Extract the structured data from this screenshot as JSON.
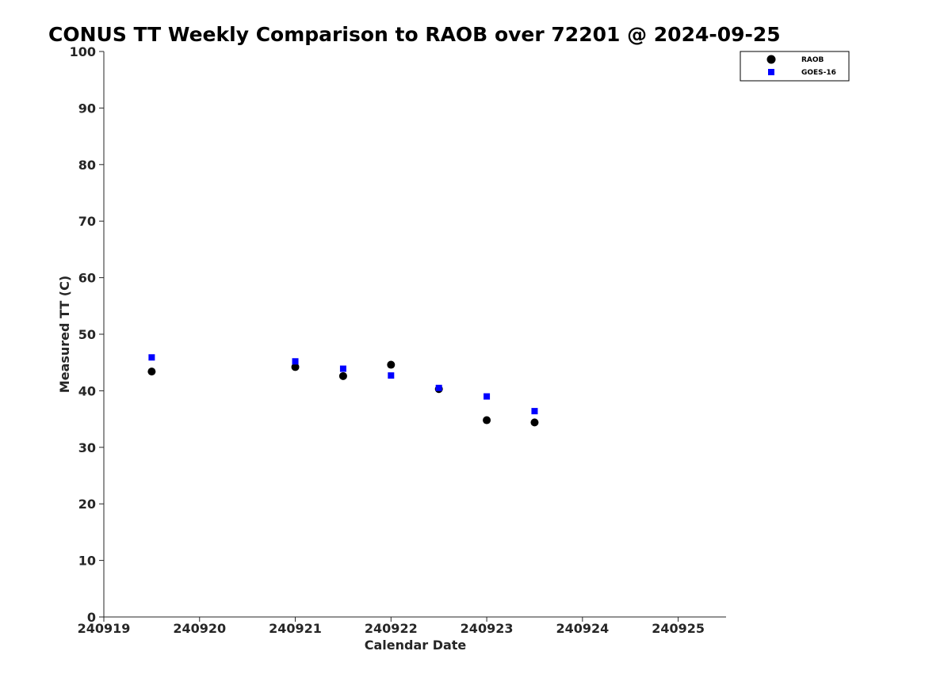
{
  "chart_data": {
    "type": "scatter",
    "title": "CONUS TT Weekly Comparison to RAOB over 72201 @ 2024-09-25",
    "xlabel": "Calendar Date",
    "ylabel": "Measured TT (C)",
    "xlim": [
      240919,
      240925.5
    ],
    "ylim": [
      0,
      100
    ],
    "x_ticks": [
      240919,
      240920,
      240921,
      240922,
      240923,
      240924,
      240925
    ],
    "x_tick_labels": [
      "240919",
      "240920",
      "240921",
      "240922",
      "240923",
      "240924",
      "240925"
    ],
    "y_ticks": [
      0,
      10,
      20,
      30,
      40,
      50,
      60,
      70,
      80,
      90,
      100
    ],
    "y_tick_labels": [
      "0",
      "10",
      "20",
      "30",
      "40",
      "50",
      "60",
      "70",
      "80",
      "90",
      "100"
    ],
    "grid": false,
    "legend_position": "top-right",
    "series": [
      {
        "name": "RAOB",
        "marker": "circle",
        "color": "#000000",
        "points": [
          {
            "x": 240919.5,
            "y": 43.4
          },
          {
            "x": 240921.0,
            "y": 44.2
          },
          {
            "x": 240921.5,
            "y": 42.6
          },
          {
            "x": 240922.0,
            "y": 44.6
          },
          {
            "x": 240922.5,
            "y": 40.3
          },
          {
            "x": 240923.0,
            "y": 34.8
          },
          {
            "x": 240923.5,
            "y": 34.4
          }
        ]
      },
      {
        "name": "GOES-16",
        "marker": "square",
        "color": "#0000ff",
        "points": [
          {
            "x": 240919.5,
            "y": 45.9
          },
          {
            "x": 240921.0,
            "y": 45.2
          },
          {
            "x": 240921.5,
            "y": 43.9
          },
          {
            "x": 240922.0,
            "y": 42.7
          },
          {
            "x": 240922.5,
            "y": 40.5
          },
          {
            "x": 240923.0,
            "y": 39.0
          },
          {
            "x": 240923.5,
            "y": 36.4
          }
        ]
      }
    ]
  }
}
